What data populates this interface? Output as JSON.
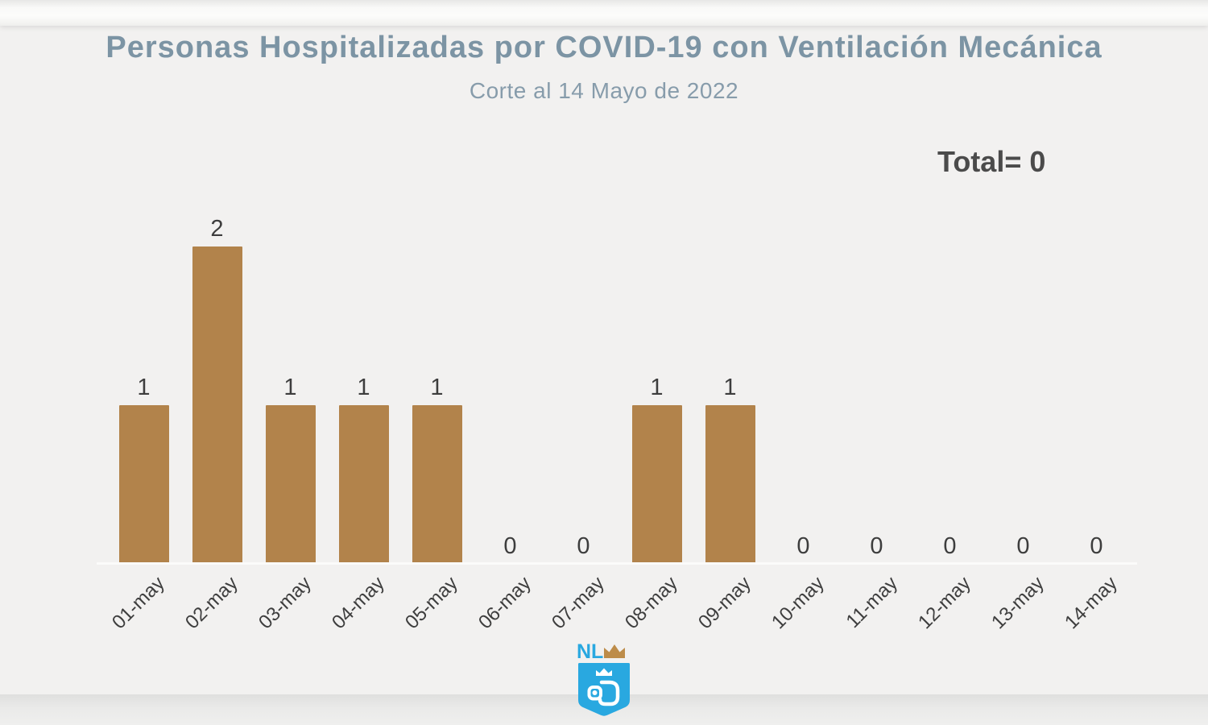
{
  "page": {
    "title": "Personas Hospitalizadas por COVID-19 con Ventilación Mecánica",
    "subtitle": "Corte al 14 Mayo de 2022",
    "total_label": "Total= 0"
  },
  "chart_data": {
    "type": "bar",
    "title": "Personas Hospitalizadas por COVID-19 con Ventilación Mecánica",
    "subtitle": "Corte al 14 Mayo de 2022",
    "categories": [
      "01-may",
      "02-may",
      "03-may",
      "04-may",
      "05-may",
      "06-may",
      "07-may",
      "08-may",
      "09-may",
      "10-may",
      "11-may",
      "12-may",
      "13-may",
      "14-may"
    ],
    "values": [
      1,
      2,
      1,
      1,
      1,
      0,
      0,
      1,
      1,
      0,
      0,
      0,
      0,
      0
    ],
    "total": 0,
    "xlabel": "",
    "ylabel": "",
    "ylim": [
      0,
      2
    ],
    "grid": false,
    "legend": false,
    "data_labels": true,
    "x_label_rotation_deg": -45,
    "bar_color": "#b2834b"
  },
  "colors": {
    "title": "#7c94a4",
    "subtitle": "#879cab",
    "total": "#4b4b4b",
    "value_label": "#3d3d3d",
    "x_label": "#3e3e3e",
    "axis_line": "#fbfbfa",
    "logo_blue": "#29a8e0",
    "logo_gold": "#bd8c49",
    "logo_white": "#ffffff"
  },
  "logo": {
    "name": "nuevo-leon-state-logo",
    "text": "NL"
  }
}
